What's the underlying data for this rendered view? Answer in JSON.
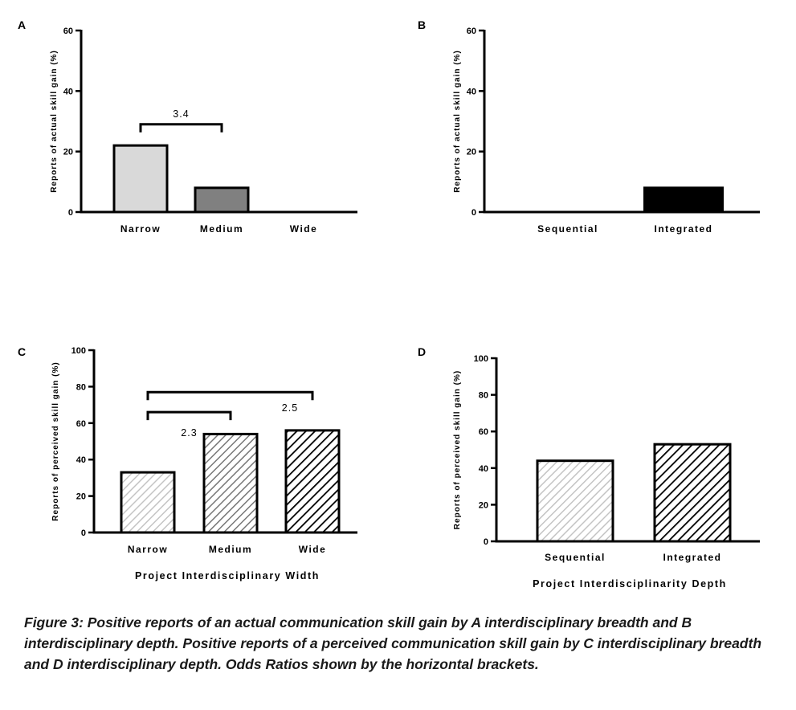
{
  "chart_data": [
    {
      "panel": "A",
      "type": "bar",
      "categories": [
        "Narrow",
        "Medium",
        "Wide"
      ],
      "values": [
        22,
        8,
        0
      ],
      "fills": [
        "#d9d9d9",
        "#808080",
        "#ffffff"
      ],
      "hatch": [
        "none",
        "none",
        "none"
      ],
      "ylabel": "Reports of actual skill gain (%)",
      "xlabel": "",
      "ylim": [
        0,
        60
      ],
      "yticks": [
        0,
        20,
        40,
        60
      ],
      "annotations": [
        {
          "from": 0,
          "to": 1,
          "label": "3.4",
          "level": 29
        }
      ]
    },
    {
      "panel": "B",
      "type": "bar",
      "categories": [
        "Sequential",
        "Integrated"
      ],
      "values": [
        0,
        8
      ],
      "fills": [
        "#ffffff",
        "#000000"
      ],
      "hatch": [
        "none",
        "none"
      ],
      "ylabel": "Reports of actual skill gain (%)",
      "xlabel": "",
      "ylim": [
        0,
        60
      ],
      "yticks": [
        0,
        20,
        40,
        60
      ],
      "annotations": []
    },
    {
      "panel": "C",
      "type": "bar",
      "categories": [
        "Narrow",
        "Medium",
        "Wide"
      ],
      "values": [
        33,
        54,
        56
      ],
      "fills": [
        "#ffffff",
        "#ffffff",
        "#ffffff"
      ],
      "hatch": [
        "light",
        "medium",
        "dark"
      ],
      "ylabel": "Reports of perceived skill gain (%)",
      "xlabel": "Project Interdisciplinary  Width",
      "ylim": [
        0,
        100
      ],
      "yticks": [
        0,
        20,
        40,
        60,
        80,
        100
      ],
      "annotations": [
        {
          "from": 0,
          "to": 1,
          "label": "2.3",
          "level": 66
        },
        {
          "from": 0,
          "to": 2,
          "label": "2.5",
          "level": 77
        }
      ]
    },
    {
      "panel": "D",
      "type": "bar",
      "categories": [
        "Sequential",
        "Integrated"
      ],
      "values": [
        44,
        53
      ],
      "fills": [
        "#ffffff",
        "#ffffff"
      ],
      "hatch": [
        "light",
        "dark"
      ],
      "ylabel": "Reports of perceived skill gain (%)",
      "xlabel": "Project Interdisciplinarity Depth",
      "ylim": [
        0,
        100
      ],
      "yticks": [
        0,
        20,
        40,
        60,
        80,
        100
      ],
      "annotations": []
    }
  ],
  "caption": "Figure 3: Positive reports of an actual communication skill gain by A interdisciplinary breadth and B interdisciplinary depth. Positive reports of a perceived communication skill gain by C interdisciplinary breadth and D interdisciplinary depth. Odds Ratios shown by the horizontal brackets."
}
